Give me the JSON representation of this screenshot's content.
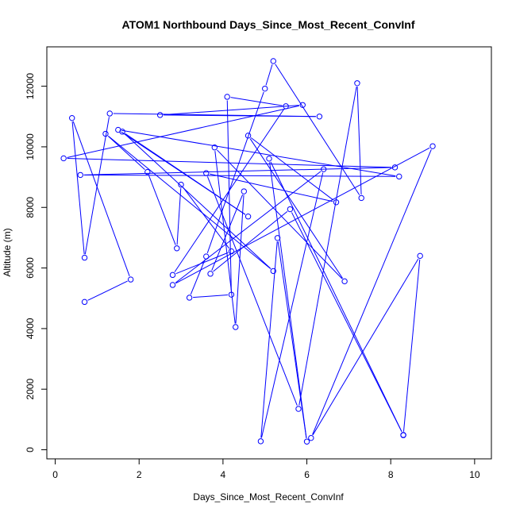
{
  "chart_data": {
    "type": "line",
    "title": "ATOM1 Northbound Days_Since_Most_Recent_ConvInf",
    "xlabel": "Days_Since_Most_Recent_ConvInf",
    "ylabel": "Altitude (m)",
    "xlim": [
      -0.2,
      10.4
    ],
    "ylim": [
      -300,
      13300
    ],
    "xticks": [
      0,
      2,
      4,
      6,
      8,
      10
    ],
    "yticks": [
      0,
      2000,
      4000,
      6000,
      8000,
      10000,
      12000
    ],
    "series": [
      {
        "color": "#0000ff",
        "marker": "open-circle",
        "points": [
          [
            0.7,
            4880
          ],
          [
            1.8,
            5620
          ],
          [
            0.4,
            10950
          ],
          [
            0.7,
            6340
          ],
          [
            1.3,
            11100
          ],
          [
            6.3,
            11000
          ],
          [
            2.5,
            11050
          ],
          [
            5.9,
            11380
          ],
          [
            0.2,
            9620
          ],
          [
            8.1,
            9320
          ],
          [
            0.6,
            9070
          ],
          [
            8.2,
            9020
          ],
          [
            1.5,
            10560
          ],
          [
            4.6,
            7700
          ],
          [
            1.6,
            10500
          ],
          [
            5.2,
            5900
          ],
          [
            1.2,
            10430
          ],
          [
            2.2,
            9170
          ],
          [
            2.9,
            6650
          ],
          [
            3.0,
            8750
          ],
          [
            4.2,
            6550
          ],
          [
            2.8,
            5770
          ],
          [
            5.5,
            11340
          ],
          [
            4.1,
            11650
          ],
          [
            4.2,
            5120
          ],
          [
            3.2,
            5020
          ],
          [
            3.6,
            6380
          ],
          [
            5.0,
            11920
          ],
          [
            5.2,
            12830
          ],
          [
            7.3,
            8310
          ],
          [
            7.2,
            12100
          ],
          [
            5.8,
            1350
          ],
          [
            3.6,
            9130
          ],
          [
            6.7,
            8170
          ],
          [
            4.6,
            10370
          ],
          [
            6.9,
            5560
          ],
          [
            3.8,
            9980
          ],
          [
            4.3,
            4050
          ],
          [
            4.5,
            8530
          ],
          [
            3.7,
            5810
          ],
          [
            5.6,
            7940
          ],
          [
            8.3,
            490
          ],
          [
            5.1,
            9610
          ],
          [
            6.0,
            270
          ],
          [
            5.3,
            6990
          ],
          [
            4.9,
            280
          ],
          [
            6.4,
            9260
          ],
          [
            2.8,
            5440
          ],
          [
            9.0,
            10020
          ],
          [
            6.1,
            390
          ],
          [
            8.7,
            6400
          ],
          [
            8.3,
            480
          ]
        ]
      }
    ]
  }
}
